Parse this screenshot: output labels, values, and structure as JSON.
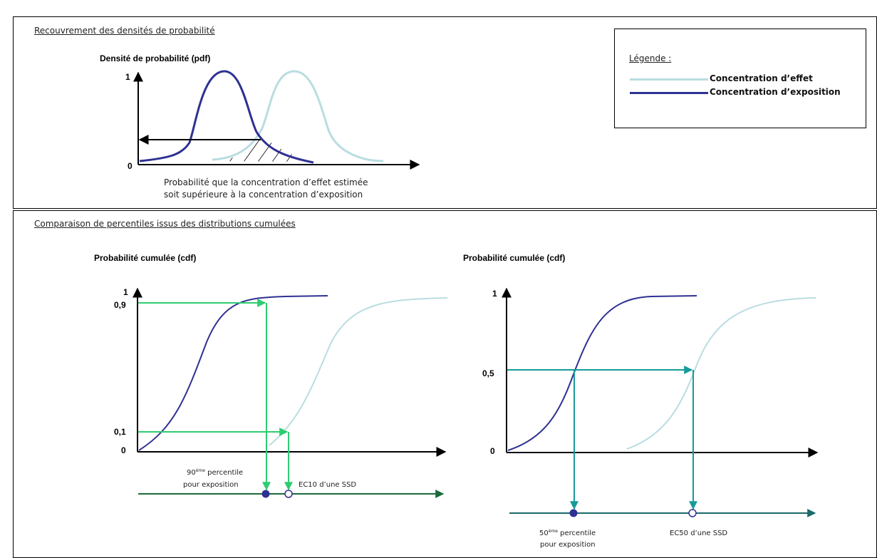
{
  "top_section": {
    "title": "Recouvrement des densités de probabilité",
    "y_axis_label": "Densité de probabilité (pdf)",
    "y_tick_top": "1",
    "y_tick_origin": "0",
    "caption_line1": "Probabilité que la concentration d’effet estimée",
    "caption_line2": "soit supérieure à la concentration d’exposition"
  },
  "legend": {
    "title": "Légende :",
    "items": [
      {
        "label": "Concentration d’effet",
        "color": "#b9dde1"
      },
      {
        "label": "Concentration d’exposition",
        "color": "#2e3192"
      }
    ]
  },
  "bottom_section": {
    "title": "Comparaison de percentiles issus des distributions cumulées",
    "left_chart": {
      "y_axis_label": "Probabilité cumulée (cdf)",
      "tick_1": "1",
      "tick_09": "0,9",
      "tick_01": "0,1",
      "tick_0": "0",
      "label_percentile_num": "90",
      "label_percentile_sup": "ème",
      "label_percentile_rest": " percentile",
      "label_percentile_line2": "pour exposition",
      "label_ec": "EC10 d’une SSD",
      "arrow_color": "#2ecc71"
    },
    "right_chart": {
      "y_axis_label": "Probabilité cumulée (cdf)",
      "tick_1": "1",
      "tick_05": "0,5",
      "tick_0": "0",
      "label_percentile_num": "50",
      "label_percentile_sup": "ème",
      "label_percentile_rest": " percentile",
      "label_percentile_line2": "pour exposition",
      "label_ec": "EC50 d’une SSD",
      "arrow_color": "#169b9b"
    }
  },
  "colors": {
    "exposure_curve": "#2e3192",
    "effect_curve": "#b9dde1",
    "left_axis_line": "#1a6b3a",
    "right_axis_line": "#1b6a6a"
  }
}
